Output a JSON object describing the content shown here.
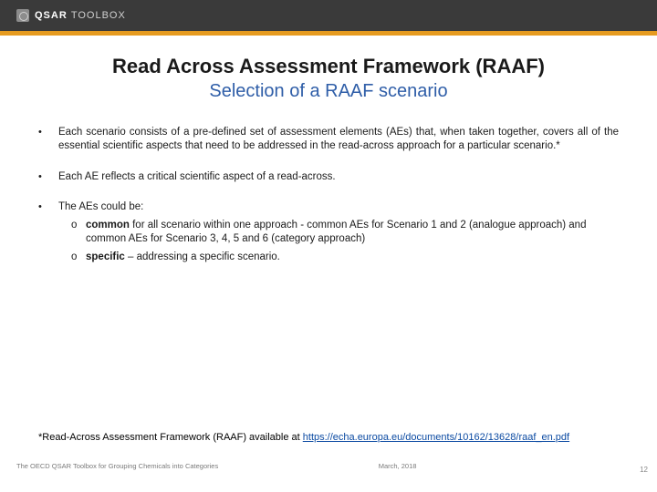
{
  "header": {
    "logo_left": "QSAR",
    "logo_right": "TOOLBOX",
    "orange_bar_color": "#e69b1f",
    "header_bg": "#3a3a3a"
  },
  "title_line1": "Read Across Assessment Framework (RAAF)",
  "title_line2": "Selection of a RAAF scenario",
  "title2_color": "#2f5ea8",
  "bullets": [
    {
      "text": "Each scenario consists of a pre-defined set of assessment elements (AEs) that, when taken together, covers all of the essential scientific aspects that need to be addressed in the read-across approach for a particular scenario.*"
    },
    {
      "text": "Each AE reflects a critical scientific aspect of a read-across."
    },
    {
      "intro": "The AEs could be:",
      "subitems": [
        {
          "lead": "common",
          "rest": " for all scenario within one approach - common AEs for Scenario 1 and 2 (analogue approach) and common AEs for Scenario 3, 4, 5 and 6 (category approach)"
        },
        {
          "lead": "specific",
          "rest": " – addressing a specific scenario."
        }
      ]
    }
  ],
  "footnote": {
    "prefix": "*Read-Across Assessment Framework (RAAF) available at ",
    "link_text": "https://echa.europa.eu/documents/10162/13628/raaf_en.pdf",
    "link_href": "https://echa.europa.eu/documents/10162/13628/raaf_en.pdf"
  },
  "footer": {
    "left": "The OECD QSAR Toolbox for Grouping Chemicals into Categories",
    "mid": "March, 2018",
    "page": "12"
  }
}
